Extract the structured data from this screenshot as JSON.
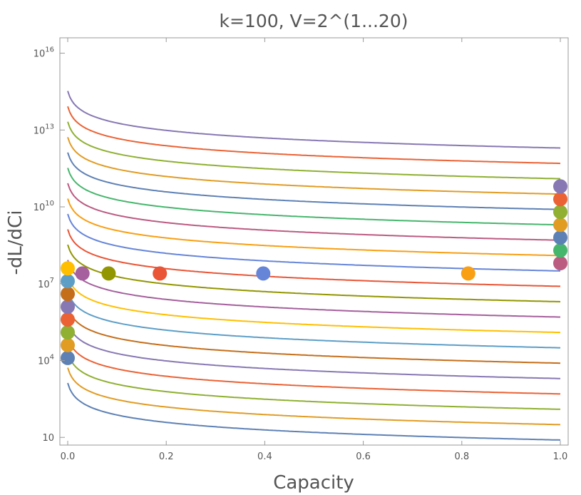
{
  "chart_data": {
    "type": "line",
    "title": "k=100,  V=2^(1...20)",
    "xlabel": "Capacity",
    "ylabel": "-dL/dCi",
    "xlim": [
      0,
      1
    ],
    "y_scale": "log10",
    "ylim_log10": [
      0.7,
      16.6
    ],
    "grid": false,
    "x_ticks": [
      {
        "value": 0.0,
        "label": "0.0"
      },
      {
        "value": 0.2,
        "label": "0.2"
      },
      {
        "value": 0.4,
        "label": "0.4"
      },
      {
        "value": 0.6,
        "label": "0.6"
      },
      {
        "value": 0.8,
        "label": "0.8"
      },
      {
        "value": 1.0,
        "label": "1.0"
      }
    ],
    "y_ticks": [
      {
        "log10": 1,
        "base": "10",
        "exp": ""
      },
      {
        "log10": 4,
        "base": "10",
        "exp": "4"
      },
      {
        "log10": 7,
        "base": "10",
        "exp": "7"
      },
      {
        "log10": 10,
        "base": "10",
        "exp": "10"
      },
      {
        "log10": 13,
        "base": "10",
        "exp": "13"
      },
      {
        "log10": 16,
        "base": "10",
        "exp": "16"
      }
    ],
    "curves": {
      "description_model": "log10(y) = a + b*log10(x + 0.006)",
      "slope_b": -1.0,
      "series": [
        {
          "index": 1,
          "a": 0.9,
          "color": "#5E81B5"
        },
        {
          "index": 2,
          "a": 1.5,
          "color": "#E19C24"
        },
        {
          "index": 3,
          "a": 2.1,
          "color": "#8FB032"
        },
        {
          "index": 4,
          "a": 2.7,
          "color": "#EB6235"
        },
        {
          "index": 5,
          "a": 3.3,
          "color": "#8778B3"
        },
        {
          "index": 6,
          "a": 3.9,
          "color": "#C56E1A"
        },
        {
          "index": 7,
          "a": 4.5,
          "color": "#5D9EC7"
        },
        {
          "index": 8,
          "a": 5.1,
          "color": "#FFBF00"
        },
        {
          "index": 9,
          "a": 5.7,
          "color": "#A5609D"
        },
        {
          "index": 10,
          "a": 6.3,
          "color": "#929600"
        },
        {
          "index": 11,
          "a": 6.9,
          "color": "#E95536"
        },
        {
          "index": 12,
          "a": 7.5,
          "color": "#6685D9"
        },
        {
          "index": 13,
          "a": 8.1,
          "color": "#F89F13"
        },
        {
          "index": 14,
          "a": 8.7,
          "color": "#BC5B80"
        },
        {
          "index": 15,
          "a": 9.3,
          "color": "#47B66D"
        },
        {
          "index": 16,
          "a": 9.9,
          "color": "#5E81B5"
        },
        {
          "index": 17,
          "a": 10.5,
          "color": "#E19C24"
        },
        {
          "index": 18,
          "a": 11.1,
          "color": "#8FB032"
        },
        {
          "index": 19,
          "a": 11.7,
          "color": "#EB6235"
        },
        {
          "index": 20,
          "a": 12.3,
          "color": "#8778B3"
        }
      ]
    },
    "points": [
      {
        "x": 0.0,
        "log10y": 4.1,
        "color": "#5E81B5"
      },
      {
        "x": 0.0,
        "log10y": 4.6,
        "color": "#E19C24"
      },
      {
        "x": 0.0,
        "log10y": 5.1,
        "color": "#8FB032"
      },
      {
        "x": 0.0,
        "log10y": 5.6,
        "color": "#EB6235"
      },
      {
        "x": 0.0,
        "log10y": 6.1,
        "color": "#8778B3"
      },
      {
        "x": 0.0,
        "log10y": 6.6,
        "color": "#C56E1A"
      },
      {
        "x": 0.0,
        "log10y": 7.1,
        "color": "#5D9EC7"
      },
      {
        "x": 0.0,
        "log10y": 7.6,
        "color": "#FFBF00"
      },
      {
        "x": 0.03,
        "log10y": 7.4,
        "color": "#A5609D"
      },
      {
        "x": 0.083,
        "log10y": 7.4,
        "color": "#929600"
      },
      {
        "x": 0.187,
        "log10y": 7.4,
        "color": "#E95536"
      },
      {
        "x": 0.397,
        "log10y": 7.4,
        "color": "#6685D9"
      },
      {
        "x": 0.813,
        "log10y": 7.4,
        "color": "#F89F13"
      },
      {
        "x": 1.0,
        "log10y": 7.8,
        "color": "#BC5B80"
      },
      {
        "x": 1.0,
        "log10y": 8.3,
        "color": "#47B66D"
      },
      {
        "x": 1.0,
        "log10y": 8.8,
        "color": "#5E81B5"
      },
      {
        "x": 1.0,
        "log10y": 9.3,
        "color": "#E19C24"
      },
      {
        "x": 1.0,
        "log10y": 9.8,
        "color": "#8FB032"
      },
      {
        "x": 1.0,
        "log10y": 10.3,
        "color": "#EB6235"
      },
      {
        "x": 1.0,
        "log10y": 10.8,
        "color": "#8778B3"
      }
    ]
  }
}
